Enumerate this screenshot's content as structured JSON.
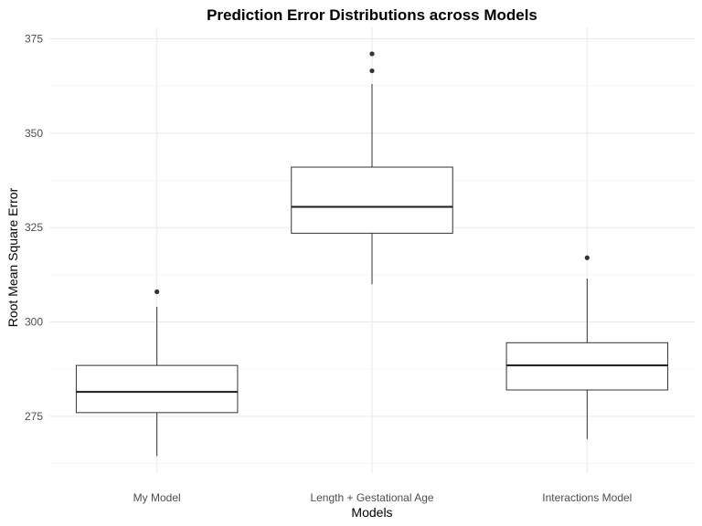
{
  "chart_data": {
    "type": "boxplot",
    "title": "Prediction Error Distributions across Models",
    "xlabel": "Models",
    "ylabel": "Root Mean Square Error",
    "ylim": [
      260,
      378
    ],
    "yticks": [
      275,
      300,
      325,
      350,
      375
    ],
    "grid": true,
    "categories": [
      "My Model",
      "Length + Gestational Age",
      "Interactions Model"
    ],
    "boxes": [
      {
        "category": "My Model",
        "whisker_low": 264.5,
        "q1": 276,
        "median": 281.5,
        "q3": 288.5,
        "whisker_high": 304,
        "outliers": [
          308
        ]
      },
      {
        "category": "Length + Gestational Age",
        "whisker_low": 310,
        "q1": 323.5,
        "median": 330.5,
        "q3": 341,
        "whisker_high": 363,
        "outliers": [
          366.5,
          371
        ]
      },
      {
        "category": "Interactions Model",
        "whisker_low": 269,
        "q1": 282,
        "median": 288.5,
        "q3": 294.5,
        "whisker_high": 311.5,
        "outliers": [
          317
        ]
      }
    ]
  }
}
